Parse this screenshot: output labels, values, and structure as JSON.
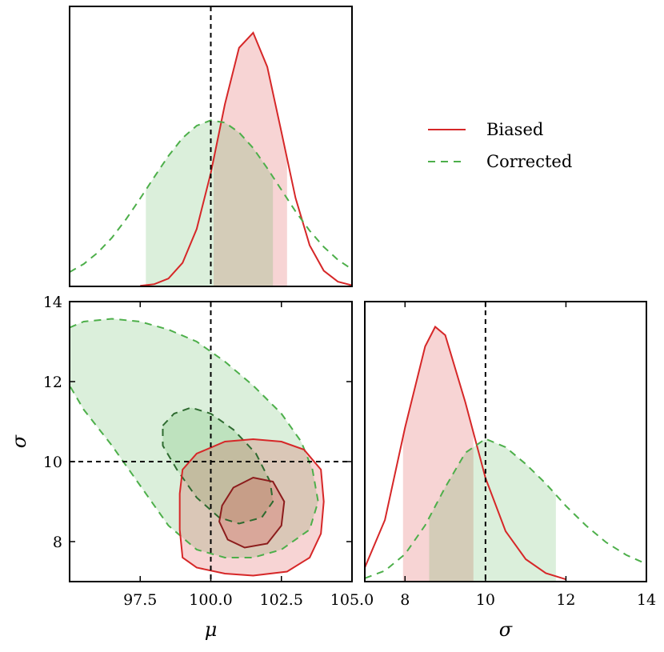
{
  "chart_data": [
    {
      "type": "density",
      "xlim": [
        95,
        105
      ],
      "ylim": [
        0,
        1
      ],
      "truth_x": 100,
      "series": [
        {
          "name": "Biased",
          "color": "#d62728",
          "line_style": "solid",
          "x": [
            97.5,
            98,
            98.5,
            99,
            99.5,
            100,
            100.5,
            101,
            101.5,
            102,
            102.5,
            103,
            103.5,
            104,
            104.5,
            105
          ],
          "values": [
            0.002,
            0.008,
            0.028,
            0.084,
            0.205,
            0.405,
            0.651,
            0.852,
            0.906,
            0.784,
            0.552,
            0.316,
            0.147,
            0.056,
            0.017,
            0.004
          ],
          "interval": [
            100.1,
            102.7
          ]
        },
        {
          "name": "Corrected",
          "color": "#4daf4a",
          "line_style": "dashed",
          "x": [
            95,
            95.5,
            96,
            96.5,
            97,
            97.5,
            98,
            98.5,
            99,
            99.5,
            100,
            100.5,
            101,
            101.5,
            102,
            102.5,
            103,
            103.5,
            104,
            104.5,
            105
          ],
          "values": [
            0.051,
            0.08,
            0.121,
            0.174,
            0.24,
            0.314,
            0.391,
            0.466,
            0.53,
            0.574,
            0.593,
            0.585,
            0.55,
            0.494,
            0.422,
            0.345,
            0.268,
            0.199,
            0.141,
            0.095,
            0.061
          ],
          "interval": [
            97.7,
            102.2
          ]
        }
      ]
    },
    {
      "type": "contour",
      "xlabel": "μ",
      "ylabel": "σ",
      "xlim": [
        95,
        105
      ],
      "ylim": [
        7,
        14
      ],
      "xticks": [
        97.5,
        {
          "value": 100,
          "label": "100.0"
        },
        102.5,
        {
          "value": 105,
          "label": "105.0"
        }
      ],
      "yticks": [
        8,
        10,
        12,
        14
      ],
      "truth_x": 100,
      "truth_y": 10,
      "series": [
        {
          "color": "#4daf4a",
          "line_style": "dashed",
          "contours": [
            {
              "color": "#4daf4a",
              "x": [
                95,
                95.5,
                96.5,
                97.5,
                98.5,
                99.5,
                100.5,
                101.5,
                102.5,
                103.2,
                103.6,
                103.8,
                103.5,
                102.5,
                101.5,
                100.5,
                99.5,
                98.5,
                97.5,
                96.5,
                95.5,
                95
              ],
              "y": [
                13.35,
                13.5,
                13.57,
                13.5,
                13.3,
                13.0,
                12.5,
                11.9,
                11.2,
                10.5,
                9.8,
                9.0,
                8.3,
                7.8,
                7.6,
                7.6,
                7.8,
                8.4,
                9.4,
                10.4,
                11.3,
                11.9
              ]
            },
            {
              "color": "#2e6b30",
              "x": [
                98.3,
                98.7,
                99.3,
                100.0,
                100.8,
                101.6,
                102.1,
                102.2,
                101.8,
                101.0,
                100.3,
                99.5,
                98.8,
                98.3
              ],
              "y": [
                10.9,
                11.2,
                11.35,
                11.2,
                10.8,
                10.2,
                9.5,
                9.0,
                8.6,
                8.45,
                8.6,
                9.1,
                9.8,
                10.4
              ]
            }
          ]
        },
        {
          "color": "#d62728",
          "line_style": "solid",
          "contours": [
            {
              "color": "#d62728",
              "x": [
                99.0,
                99.5,
                100.5,
                101.5,
                102.5,
                103.3,
                103.9,
                104.0,
                103.9,
                103.5,
                102.7,
                101.5,
                100.5,
                99.5,
                99.0,
                98.9,
                98.9
              ],
              "y": [
                9.8,
                10.2,
                10.5,
                10.56,
                10.5,
                10.3,
                9.8,
                9.0,
                8.2,
                7.6,
                7.25,
                7.15,
                7.2,
                7.35,
                7.6,
                8.3,
                9.2
              ]
            },
            {
              "color": "#8c1c1c",
              "x": [
                100.4,
                100.8,
                101.5,
                102.2,
                102.6,
                102.5,
                102.0,
                101.2,
                100.6,
                100.3
              ],
              "y": [
                8.9,
                9.35,
                9.6,
                9.5,
                9.0,
                8.4,
                7.95,
                7.85,
                8.05,
                8.5
              ]
            }
          ]
        }
      ]
    },
    {
      "type": "density",
      "xlabel": "σ",
      "xlim": [
        7,
        14
      ],
      "ylim": [
        0,
        1
      ],
      "xticks": [
        8,
        10,
        12,
        14
      ],
      "truth_x": 10,
      "series": [
        {
          "color": "#d62728",
          "line_style": "solid",
          "x": [
            7,
            7.5,
            8,
            8.5,
            8.75,
            9,
            9.5,
            10,
            10.5,
            11,
            11.5,
            12
          ],
          "values": [
            0.05,
            0.22,
            0.55,
            0.84,
            0.91,
            0.88,
            0.64,
            0.37,
            0.18,
            0.08,
            0.03,
            0.008
          ],
          "interval": [
            7.95,
            9.7
          ]
        },
        {
          "color": "#4daf4a",
          "line_style": "dashed",
          "x": [
            7,
            7.5,
            8,
            8.5,
            9,
            9.5,
            10,
            10.5,
            11,
            11.5,
            12,
            12.5,
            13,
            13.5,
            14
          ],
          "values": [
            0.012,
            0.039,
            0.098,
            0.201,
            0.337,
            0.46,
            0.51,
            0.48,
            0.42,
            0.35,
            0.27,
            0.2,
            0.14,
            0.095,
            0.063
          ],
          "interval": [
            8.6,
            11.75
          ]
        }
      ]
    }
  ]
}
